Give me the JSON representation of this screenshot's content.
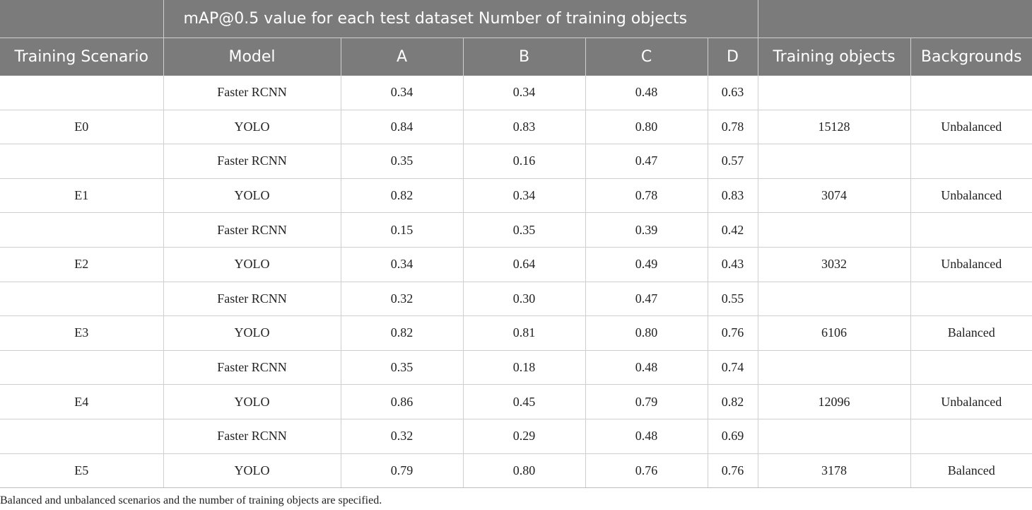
{
  "table": {
    "group_header": "mAP@0.5 value for each test dataset Number of training objects",
    "columns": [
      "Training Scenario",
      "Model",
      "A",
      "B",
      "C",
      "D",
      "Training objects",
      "Backgrounds"
    ],
    "rows": [
      [
        "",
        "Faster RCNN",
        "0.34",
        "0.34",
        "0.48",
        "0.63",
        "",
        ""
      ],
      [
        "E0",
        "YOLO",
        "0.84",
        "0.83",
        "0.80",
        "0.78",
        "15128",
        "Unbalanced"
      ],
      [
        "",
        "Faster RCNN",
        "0.35",
        "0.16",
        "0.47",
        "0.57",
        "",
        ""
      ],
      [
        "E1",
        "YOLO",
        "0.82",
        "0.34",
        "0.78",
        "0.83",
        "3074",
        "Unbalanced"
      ],
      [
        "",
        "Faster RCNN",
        "0.15",
        "0.35",
        "0.39",
        "0.42",
        "",
        ""
      ],
      [
        "E2",
        "YOLO",
        "0.34",
        "0.64",
        "0.49",
        "0.43",
        "3032",
        "Unbalanced"
      ],
      [
        "",
        "Faster RCNN",
        "0.32",
        "0.30",
        "0.47",
        "0.55",
        "",
        ""
      ],
      [
        "E3",
        "YOLO",
        "0.82",
        "0.81",
        "0.80",
        "0.76",
        "6106",
        "Balanced"
      ],
      [
        "",
        "Faster RCNN",
        "0.35",
        "0.18",
        "0.48",
        "0.74",
        "",
        ""
      ],
      [
        "E4",
        "YOLO",
        "0.86",
        "0.45",
        "0.79",
        "0.82",
        "12096",
        "Unbalanced"
      ],
      [
        "",
        "Faster RCNN",
        "0.32",
        "0.29",
        "0.48",
        "0.69",
        "",
        ""
      ],
      [
        "E5",
        "YOLO",
        "0.79",
        "0.80",
        "0.76",
        "0.76",
        "3178",
        "Balanced"
      ]
    ]
  },
  "caption": "Balanced and unbalanced scenarios and the number of training objects are specified.",
  "colors": {
    "header_bg": "#7b7b7b",
    "header_text": "#ffffff",
    "grid_line": "#cfcfcf",
    "body_text": "#222222"
  }
}
